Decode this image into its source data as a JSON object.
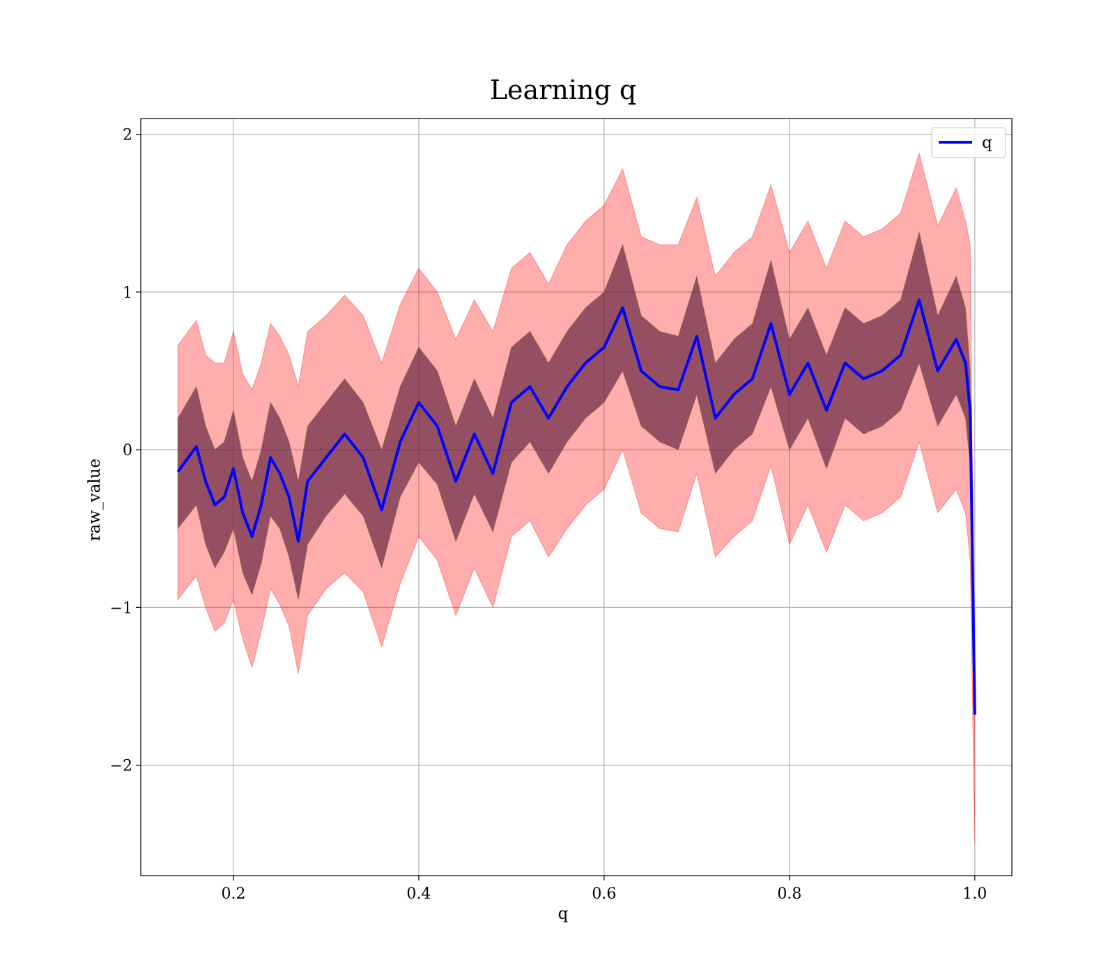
{
  "chart_data": {
    "type": "line",
    "title": "Learning q",
    "xlabel": "q",
    "ylabel": "raw_value",
    "xlim": [
      0.1,
      1.04
    ],
    "ylim": [
      -2.7,
      2.1
    ],
    "xticks": [
      "0.2",
      "0.4",
      "0.6",
      "0.8",
      "1.0"
    ],
    "xtick_values": [
      0.2,
      0.4,
      0.6,
      0.8,
      1.0
    ],
    "yticks": [
      "2",
      "1",
      "0",
      "−1",
      "−2"
    ],
    "ytick_values": [
      2,
      1,
      0,
      -1,
      -2
    ],
    "grid": true,
    "legend": {
      "position": "top-right",
      "entries": [
        "q"
      ]
    },
    "colors": {
      "line": "#0000ff",
      "outer_band": "#ff0000",
      "inner_band": "#5a1f3a",
      "grid": "#b0b0b0"
    },
    "x": [
      0.14,
      0.16,
      0.17,
      0.18,
      0.19,
      0.2,
      0.21,
      0.22,
      0.23,
      0.24,
      0.25,
      0.26,
      0.27,
      0.28,
      0.3,
      0.32,
      0.34,
      0.36,
      0.38,
      0.4,
      0.42,
      0.44,
      0.46,
      0.48,
      0.5,
      0.52,
      0.54,
      0.56,
      0.58,
      0.6,
      0.62,
      0.64,
      0.66,
      0.68,
      0.7,
      0.72,
      0.74,
      0.76,
      0.78,
      0.8,
      0.82,
      0.84,
      0.86,
      0.88,
      0.9,
      0.92,
      0.94,
      0.96,
      0.98,
      0.99,
      0.995,
      1.0
    ],
    "series": [
      {
        "name": "q",
        "values": [
          -0.14,
          0.02,
          -0.2,
          -0.35,
          -0.3,
          -0.12,
          -0.4,
          -0.55,
          -0.35,
          -0.05,
          -0.15,
          -0.3,
          -0.58,
          -0.2,
          -0.05,
          0.1,
          -0.05,
          -0.38,
          0.05,
          0.3,
          0.15,
          -0.2,
          0.1,
          -0.15,
          0.3,
          0.4,
          0.2,
          0.4,
          0.55,
          0.65,
          0.9,
          0.5,
          0.4,
          0.38,
          0.72,
          0.2,
          0.35,
          0.45,
          0.8,
          0.35,
          0.55,
          0.25,
          0.55,
          0.45,
          0.5,
          0.6,
          0.95,
          0.5,
          0.7,
          0.55,
          0.25,
          -1.68
        ]
      }
    ],
    "outer_band": {
      "upper": [
        0.66,
        0.82,
        0.6,
        0.55,
        0.55,
        0.75,
        0.48,
        0.38,
        0.55,
        0.8,
        0.72,
        0.6,
        0.4,
        0.75,
        0.85,
        0.98,
        0.85,
        0.55,
        0.92,
        1.15,
        1.0,
        0.7,
        0.95,
        0.75,
        1.15,
        1.25,
        1.05,
        1.3,
        1.45,
        1.55,
        1.78,
        1.35,
        1.3,
        1.3,
        1.6,
        1.1,
        1.25,
        1.35,
        1.68,
        1.25,
        1.45,
        1.15,
        1.45,
        1.35,
        1.4,
        1.5,
        1.88,
        1.42,
        1.66,
        1.45,
        1.3,
        -1.65
      ],
      "lower": [
        -0.95,
        -0.8,
        -1.0,
        -1.15,
        -1.1,
        -0.95,
        -1.2,
        -1.38,
        -1.15,
        -0.88,
        -0.98,
        -1.12,
        -1.42,
        -1.05,
        -0.88,
        -0.78,
        -0.9,
        -1.25,
        -0.85,
        -0.55,
        -0.7,
        -1.05,
        -0.75,
        -1.0,
        -0.55,
        -0.45,
        -0.68,
        -0.5,
        -0.35,
        -0.25,
        0.0,
        -0.4,
        -0.5,
        -0.52,
        -0.15,
        -0.68,
        -0.55,
        -0.45,
        -0.1,
        -0.6,
        -0.35,
        -0.65,
        -0.35,
        -0.45,
        -0.4,
        -0.3,
        0.05,
        -0.4,
        -0.25,
        -0.4,
        -0.7,
        -2.5
      ]
    },
    "inner_band": {
      "upper": [
        0.2,
        0.4,
        0.15,
        0.0,
        0.05,
        0.25,
        -0.05,
        -0.2,
        0.0,
        0.3,
        0.2,
        0.05,
        -0.2,
        0.15,
        0.3,
        0.45,
        0.3,
        0.0,
        0.4,
        0.65,
        0.5,
        0.15,
        0.45,
        0.2,
        0.65,
        0.75,
        0.55,
        0.75,
        0.9,
        1.0,
        1.3,
        0.85,
        0.75,
        0.72,
        1.1,
        0.55,
        0.7,
        0.8,
        1.2,
        0.7,
        0.9,
        0.6,
        0.9,
        0.8,
        0.85,
        0.95,
        1.38,
        0.85,
        1.1,
        0.9,
        0.5,
        -1.68
      ],
      "lower": [
        -0.5,
        -0.35,
        -0.6,
        -0.75,
        -0.65,
        -0.5,
        -0.78,
        -0.92,
        -0.72,
        -0.42,
        -0.5,
        -0.68,
        -0.95,
        -0.6,
        -0.42,
        -0.28,
        -0.42,
        -0.75,
        -0.3,
        -0.08,
        -0.22,
        -0.58,
        -0.28,
        -0.52,
        -0.08,
        0.05,
        -0.15,
        0.05,
        0.2,
        0.3,
        0.5,
        0.15,
        0.05,
        0.0,
        0.35,
        -0.15,
        0.0,
        0.1,
        0.4,
        0.0,
        0.2,
        -0.12,
        0.2,
        0.1,
        0.15,
        0.25,
        0.55,
        0.15,
        0.35,
        0.2,
        -0.1,
        -1.68
      ]
    }
  }
}
